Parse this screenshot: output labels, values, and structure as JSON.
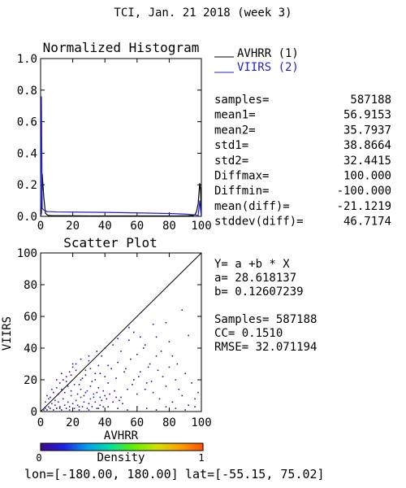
{
  "header": {
    "title": "TCI,  Jan. 21 2018 (week 3)"
  },
  "colors": {
    "avhrr": "#000000",
    "viirs": "#1f1fd0",
    "background": "#ffffff",
    "density_scale": [
      "#3a0a8c",
      "#2020e0",
      "#00a0f0",
      "#00e0a0",
      "#60f000",
      "#d0e000",
      "#ffa000",
      "#ff5000"
    ]
  },
  "chart_data": [
    {
      "type": "line",
      "title": "Normalized Histogram",
      "xlim": [
        0,
        100
      ],
      "ylim": [
        0.0,
        1.0
      ],
      "xticks": [
        "0",
        "20",
        "40",
        "60",
        "80",
        "100"
      ],
      "yticks": [
        "0.0",
        "0.2",
        "0.4",
        "0.6",
        "0.8",
        "1.0"
      ],
      "grid": false,
      "legend_position": "top-right",
      "series": [
        {
          "name": "AVHRR (1)",
          "x": [
            0,
            0.5,
            1,
            2,
            3,
            4,
            5,
            8,
            15,
            30,
            50,
            70,
            85,
            92,
            95,
            96,
            97,
            98,
            99,
            99.5,
            100
          ],
          "y": [
            0.0,
            0.02,
            0.27,
            0.12,
            0.02,
            0.01,
            0.005,
            0.004,
            0.004,
            0.003,
            0.003,
            0.003,
            0.003,
            0.004,
            0.006,
            0.01,
            0.03,
            0.08,
            0.21,
            0.17,
            0.0
          ]
        },
        {
          "name": "VIIRS (2)",
          "x": [
            0,
            0.5,
            1,
            2,
            3,
            4,
            6,
            10,
            20,
            40,
            60,
            80,
            90,
            95,
            97,
            98,
            99,
            99.5,
            100
          ],
          "y": [
            0.0,
            0.76,
            0.05,
            0.04,
            0.035,
            0.03,
            0.03,
            0.028,
            0.027,
            0.025,
            0.022,
            0.018,
            0.014,
            0.01,
            0.008,
            0.006,
            0.1,
            0.04,
            0.0
          ]
        }
      ]
    },
    {
      "type": "scatter",
      "title": "Scatter Plot",
      "xlabel": "AVHRR",
      "ylabel": "VIIRS",
      "xlim": [
        0,
        100
      ],
      "ylim": [
        0,
        100
      ],
      "xticks": [
        "0",
        "20",
        "40",
        "60",
        "80",
        "100"
      ],
      "yticks": [
        "0",
        "20",
        "40",
        "60",
        "80",
        "100"
      ],
      "grid": false,
      "reference_line": "1:1 diagonal",
      "points": [
        [
          2,
          1
        ],
        [
          3,
          2
        ],
        [
          4,
          1
        ],
        [
          5,
          3
        ],
        [
          6,
          2
        ],
        [
          7,
          5
        ],
        [
          8,
          1
        ],
        [
          9,
          4
        ],
        [
          10,
          2
        ],
        [
          11,
          6
        ],
        [
          12,
          3
        ],
        [
          13,
          1
        ],
        [
          14,
          8
        ],
        [
          15,
          4
        ],
        [
          16,
          2
        ],
        [
          17,
          6
        ],
        [
          18,
          3
        ],
        [
          19,
          10
        ],
        [
          20,
          5
        ],
        [
          21,
          2
        ],
        [
          22,
          7
        ],
        [
          23,
          4
        ],
        [
          24,
          1
        ],
        [
          25,
          9
        ],
        [
          26,
          3
        ],
        [
          27,
          6
        ],
        [
          28,
          12
        ],
        [
          29,
          2
        ],
        [
          30,
          5
        ],
        [
          31,
          8
        ],
        [
          32,
          3
        ],
        [
          33,
          11
        ],
        [
          34,
          6
        ],
        [
          35,
          2
        ],
        [
          36,
          15
        ],
        [
          37,
          4
        ],
        [
          38,
          7
        ],
        [
          39,
          3
        ],
        [
          40,
          10
        ],
        [
          5,
          8
        ],
        [
          8,
          12
        ],
        [
          10,
          15
        ],
        [
          12,
          18
        ],
        [
          14,
          20
        ],
        [
          16,
          22
        ],
        [
          18,
          25
        ],
        [
          20,
          28
        ],
        [
          22,
          30
        ],
        [
          24,
          17
        ],
        [
          26,
          21
        ],
        [
          28,
          26
        ],
        [
          30,
          32
        ],
        [
          32,
          19
        ],
        [
          34,
          24
        ],
        [
          36,
          29
        ],
        [
          38,
          35
        ],
        [
          40,
          22
        ],
        [
          42,
          18
        ],
        [
          44,
          27
        ],
        [
          46,
          13
        ],
        [
          48,
          31
        ],
        [
          50,
          9
        ],
        [
          52,
          25
        ],
        [
          54,
          14
        ],
        [
          56,
          33
        ],
        [
          58,
          20
        ],
        [
          60,
          11
        ],
        [
          3,
          6
        ],
        [
          6,
          9
        ],
        [
          9,
          7
        ],
        [
          11,
          11
        ],
        [
          13,
          14
        ],
        [
          15,
          12
        ],
        [
          17,
          16
        ],
        [
          19,
          13
        ],
        [
          21,
          17
        ],
        [
          23,
          11
        ],
        [
          25,
          14
        ],
        [
          27,
          10
        ],
        [
          29,
          13
        ],
        [
          31,
          16
        ],
        [
          33,
          9
        ],
        [
          35,
          12
        ],
        [
          37,
          9
        ],
        [
          39,
          13
        ],
        [
          41,
          8
        ],
        [
          43,
          11
        ],
        [
          45,
          6
        ],
        [
          47,
          9
        ],
        [
          49,
          7
        ],
        [
          51,
          5
        ],
        [
          62,
          25
        ],
        [
          64,
          40
        ],
        [
          66,
          18
        ],
        [
          68,
          30
        ],
        [
          70,
          12
        ],
        [
          72,
          35
        ],
        [
          74,
          8
        ],
        [
          76,
          22
        ],
        [
          78,
          16
        ],
        [
          80,
          28
        ],
        [
          82,
          6
        ],
        [
          84,
          20
        ],
        [
          86,
          14
        ],
        [
          88,
          10
        ],
        [
          90,
          24
        ],
        [
          92,
          4
        ],
        [
          94,
          18
        ],
        [
          96,
          8
        ],
        [
          98,
          12
        ],
        [
          45,
          42
        ],
        [
          50,
          38
        ],
        [
          55,
          45
        ],
        [
          58,
          50
        ],
        [
          62,
          47
        ],
        [
          65,
          42
        ],
        [
          70,
          55
        ],
        [
          75,
          38
        ],
        [
          80,
          44
        ],
        [
          85,
          30
        ],
        [
          88,
          64
        ],
        [
          92,
          48
        ],
        [
          55,
          53
        ],
        [
          48,
          46
        ],
        [
          40,
          40
        ],
        [
          35,
          38
        ],
        [
          30,
          35
        ],
        [
          25,
          33
        ],
        [
          20,
          30
        ],
        [
          78,
          56
        ],
        [
          82,
          35
        ],
        [
          60,
          36
        ],
        [
          67,
          28
        ],
        [
          72,
          47
        ],
        [
          4,
          10
        ],
        [
          7,
          14
        ],
        [
          10,
          20
        ],
        [
          13,
          24
        ],
        [
          16,
          19
        ],
        [
          19,
          23
        ],
        [
          22,
          26
        ],
        [
          25,
          20
        ],
        [
          28,
          23
        ],
        [
          31,
          27
        ],
        [
          34,
          20
        ],
        [
          37,
          24
        ],
        [
          42,
          29
        ],
        [
          47,
          21
        ],
        [
          53,
          27
        ],
        [
          57,
          17
        ],
        [
          61,
          22
        ],
        [
          65,
          14
        ],
        [
          69,
          19
        ],
        [
          73,
          26
        ],
        [
          12,
          2
        ],
        [
          18,
          1
        ],
        [
          24,
          3
        ],
        [
          30,
          1
        ],
        [
          36,
          2
        ],
        [
          42,
          3
        ],
        [
          48,
          2
        ],
        [
          54,
          1
        ],
        [
          60,
          3
        ],
        [
          66,
          2
        ],
        [
          72,
          1
        ],
        [
          78,
          3
        ],
        [
          84,
          2
        ],
        [
          90,
          1
        ],
        [
          96,
          3
        ]
      ]
    }
  ],
  "stats": [
    {
      "label": "samples=",
      "value": "587188"
    },
    {
      "label": "mean1=",
      "value": "56.9153"
    },
    {
      "label": "mean2=",
      "value": "35.7937"
    },
    {
      "label": "std1=",
      "value": "38.8664"
    },
    {
      "label": "std2=",
      "value": "32.4415"
    },
    {
      "label": "Diffmax=",
      "value": "100.000"
    },
    {
      "label": "Diffmin=",
      "value": "-100.000"
    },
    {
      "label": "mean(diff)=",
      "value": "-21.1219"
    },
    {
      "label": "stddev(diff)=",
      "value": "46.7174"
    }
  ],
  "regression": [
    "Y= a +b * X",
    "a= 28.618137",
    "b= 0.12607239",
    "",
    "Samples= 587188",
    "CC=  0.1510",
    "RMSE= 32.071194"
  ],
  "colorbar": {
    "label": "Density",
    "min_label": "0",
    "max_label": "1"
  },
  "footer": {
    "lon_text": "lon=[-180.00, 180.00]",
    "lat_text": "lat=[-55.15, 75.02]"
  }
}
